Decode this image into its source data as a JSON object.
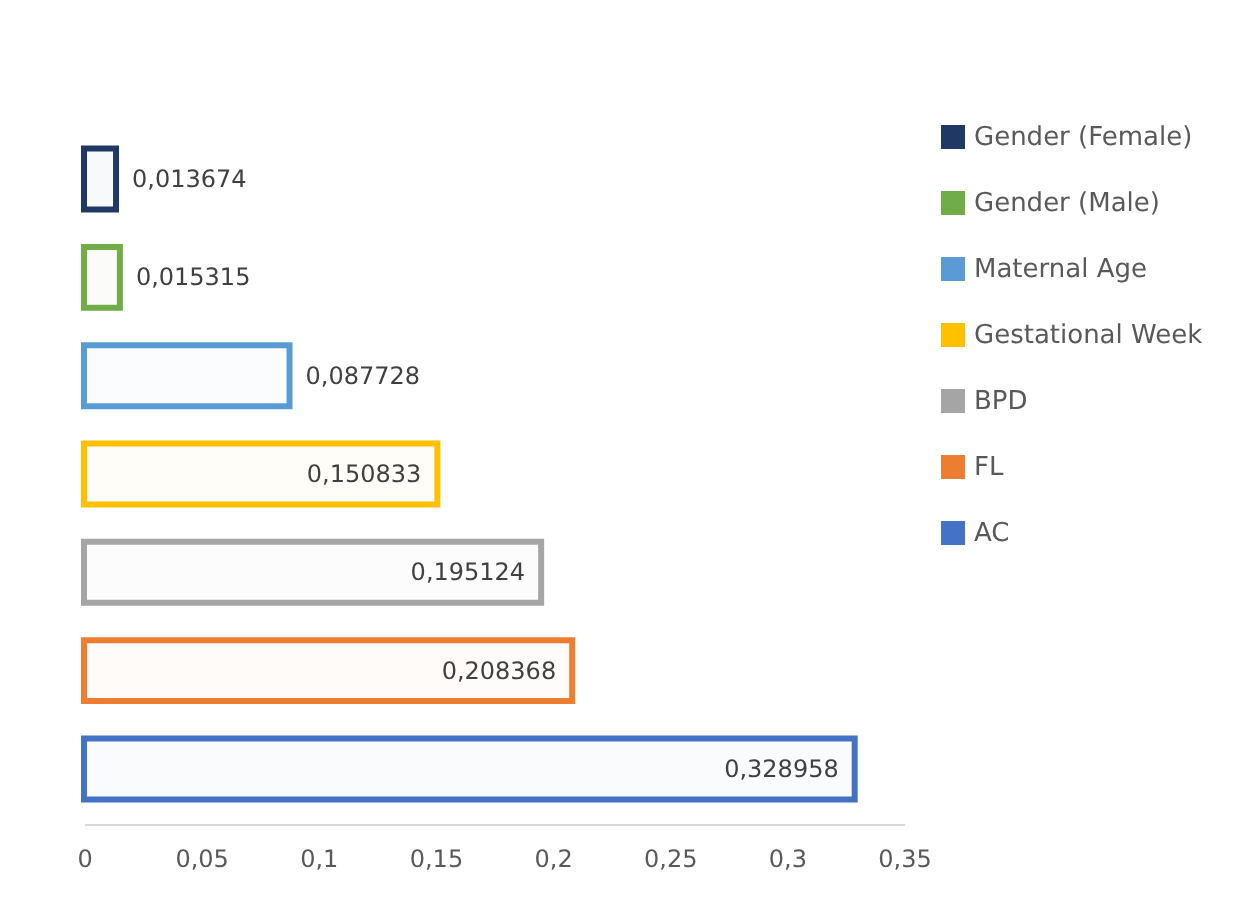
{
  "chart_data": {
    "type": "bar",
    "orientation": "horizontal",
    "stacked": true,
    "categories": [
      null,
      null,
      null,
      null,
      null,
      null,
      null
    ],
    "series": [
      {
        "name": "Gender (Female)",
        "color": "#203864",
        "values": [
          0.013674,
          null,
          null,
          null,
          null,
          null,
          null
        ],
        "value_labels": [
          "0,013674",
          null,
          null,
          null,
          null,
          null,
          null
        ]
      },
      {
        "name": "Gender (Male)",
        "color": "#70ad47",
        "values": [
          null,
          0.015315,
          null,
          null,
          null,
          null,
          null
        ],
        "value_labels": [
          null,
          "0,015315",
          null,
          null,
          null,
          null,
          null
        ]
      },
      {
        "name": "Maternal Age",
        "color": "#5b9bd5",
        "values": [
          null,
          null,
          0.087728,
          null,
          null,
          null,
          null
        ],
        "value_labels": [
          null,
          null,
          "0,087728",
          null,
          null,
          null,
          null
        ]
      },
      {
        "name": "Gestational Week",
        "color": "#ffc000",
        "values": [
          null,
          null,
          null,
          0.150833,
          null,
          null,
          null
        ],
        "value_labels": [
          null,
          null,
          null,
          "0,150833",
          null,
          null,
          null
        ]
      },
      {
        "name": "BPD",
        "color": "#a5a5a5",
        "values": [
          null,
          null,
          null,
          null,
          0.195124,
          null,
          null
        ],
        "value_labels": [
          null,
          null,
          null,
          null,
          "0,195124",
          null,
          null
        ]
      },
      {
        "name": "FL",
        "color": "#ed7d31",
        "values": [
          null,
          null,
          null,
          null,
          null,
          0.208368,
          null
        ],
        "value_labels": [
          null,
          null,
          null,
          null,
          null,
          "0,208368",
          null
        ]
      },
      {
        "name": "AC",
        "color": "#4472c4",
        "values": [
          null,
          null,
          null,
          null,
          null,
          null,
          0.328958
        ],
        "value_labels": [
          null,
          null,
          null,
          null,
          null,
          null,
          "0,328958"
        ]
      }
    ],
    "xlim": [
      0,
      0.35
    ],
    "xticks": [
      0,
      {
        "value": 0.05,
        "label": "0,05"
      },
      {
        "value": 0.1,
        "label": "0,1"
      },
      {
        "value": 0.15,
        "label": "0,15"
      },
      {
        "value": 0.2,
        "label": "0,2"
      },
      {
        "value": 0.25,
        "label": "0,25"
      },
      {
        "value": 0.3,
        "label": "0,3"
      },
      {
        "value": 0.35,
        "label": "0,35"
      }
    ],
    "legend": "top right",
    "grid": false
  }
}
